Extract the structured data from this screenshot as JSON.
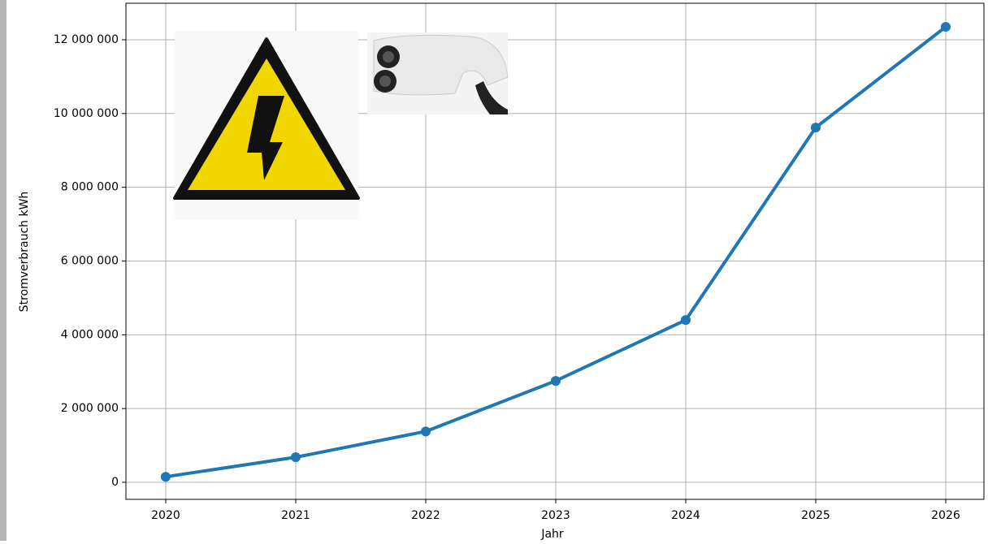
{
  "chart_data": {
    "type": "line",
    "xlabel": "Jahr",
    "ylabel": "Stromverbrauch kWh",
    "x": [
      2020,
      2021,
      2022,
      2023,
      2024,
      2025,
      2026
    ],
    "series": [
      {
        "name": "Stromverbrauch",
        "color": "#1f77b4",
        "values": [
          150000,
          680000,
          1380000,
          2750000,
          4400000,
          9620000,
          12350000
        ]
      }
    ],
    "xlim": [
      2019.694,
      2026.294
    ],
    "ylim": [
      -462000,
      12990000
    ],
    "xticks": [
      2020,
      2021,
      2022,
      2023,
      2024,
      2025,
      2026
    ],
    "yticks": [
      0,
      {
        "value": 2000000,
        "label": "2 000 000"
      },
      {
        "value": 4000000,
        "label": "4 000 000"
      },
      {
        "value": 6000000,
        "label": "6 000 000"
      },
      {
        "value": 8000000,
        "label": "8 000 000"
      },
      {
        "value": 10000000,
        "label": "10 000 000"
      },
      {
        "value": 12000000,
        "label": "12 000 000"
      }
    ],
    "grid": true
  }
}
